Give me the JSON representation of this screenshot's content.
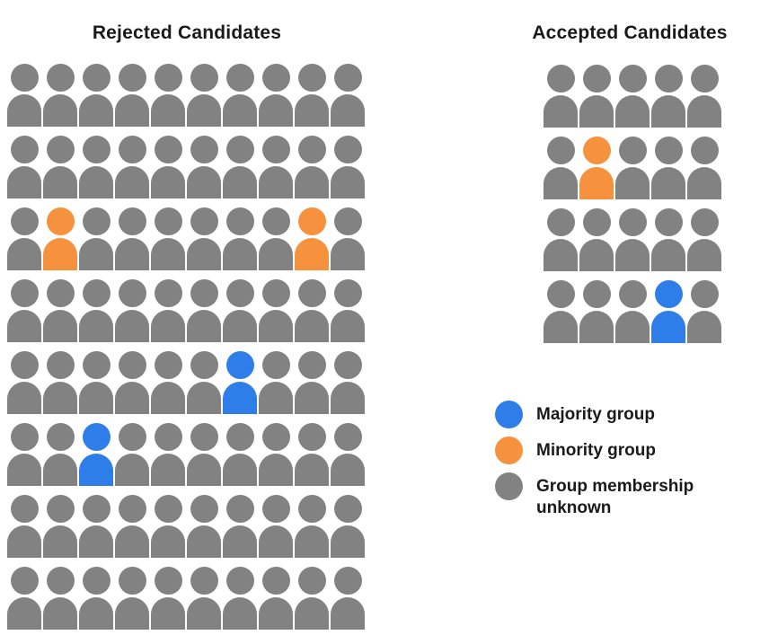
{
  "colors": {
    "majority_blue": "#2E7DE9",
    "minority_orange": "#F6913E",
    "unknown_gray": "#828282",
    "title_text": "#1a1a1a",
    "background": "#ffffff"
  },
  "chart_data": {
    "type": "waffle_pictogram",
    "groups": [
      {
        "title": "Rejected Candidates",
        "rows": 8,
        "columns": 10,
        "total": 80,
        "counts": {
          "majority": 2,
          "minority": 2,
          "unknown": 76
        },
        "grid": [
          "gggggggggg",
          "gggggggggg",
          "goggggggog",
          "gggggggggg",
          "ggggggbggg",
          "ggbggggggg",
          "gggggggggg",
          "gggggggggg"
        ]
      },
      {
        "title": "Accepted Candidates",
        "rows": 4,
        "columns": 5,
        "total": 20,
        "counts": {
          "majority": 1,
          "minority": 1,
          "unknown": 18
        },
        "grid": [
          "ggggg",
          "goggg",
          "ggggg",
          "gggbg"
        ]
      }
    ],
    "cell_codes": {
      "g": "unknown",
      "o": "minority",
      "b": "majority"
    },
    "legend": [
      {
        "label": "Majority group",
        "color": "#2E7DE9",
        "key": "majority"
      },
      {
        "label": "Minority group",
        "color": "#F6913E",
        "key": "minority"
      },
      {
        "label": "Group membership unknown",
        "color": "#828282",
        "key": "unknown"
      }
    ],
    "legend_position": "right-middle",
    "grid_lines": false
  }
}
